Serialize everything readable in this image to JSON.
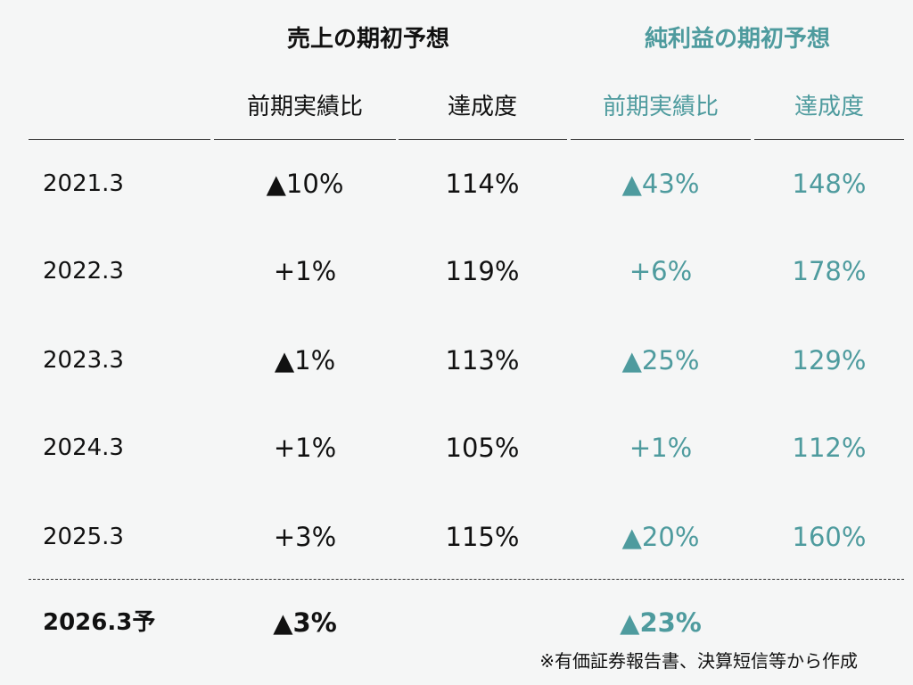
{
  "headers": {
    "sales_group": "売上の期初予想",
    "profit_group": "純利益の期初予想",
    "sales_yoy": "前期実績比",
    "sales_rate": "達成度",
    "profit_yoy": "前期実績比",
    "profit_rate": "達成度"
  },
  "rows": [
    {
      "year": "2021.3",
      "sales_yoy": "▲10%",
      "sales_rate": "114%",
      "profit_yoy": "▲43%",
      "profit_rate": "148%"
    },
    {
      "year": "2022.3",
      "sales_yoy": "+1%",
      "sales_rate": "119%",
      "profit_yoy": "+6%",
      "profit_rate": "178%"
    },
    {
      "year": "2023.3",
      "sales_yoy": "▲1%",
      "sales_rate": "113%",
      "profit_yoy": "▲25%",
      "profit_rate": "129%"
    },
    {
      "year": "2024.3",
      "sales_yoy": "+1%",
      "sales_rate": "105%",
      "profit_yoy": "+1%",
      "profit_rate": "112%"
    },
    {
      "year": "2025.3",
      "sales_yoy": "+3%",
      "sales_rate": "115%",
      "profit_yoy": "▲20%",
      "profit_rate": "160%"
    }
  ],
  "forecast": {
    "year": "2026.3予",
    "sales_yoy": "▲3%",
    "profit_yoy": "▲23%"
  },
  "footnote": "※有価証券報告書、決算短信等から作成",
  "colors": {
    "accent": "#4e9b9e",
    "text": "#111111",
    "background": "#f5f6f6"
  }
}
